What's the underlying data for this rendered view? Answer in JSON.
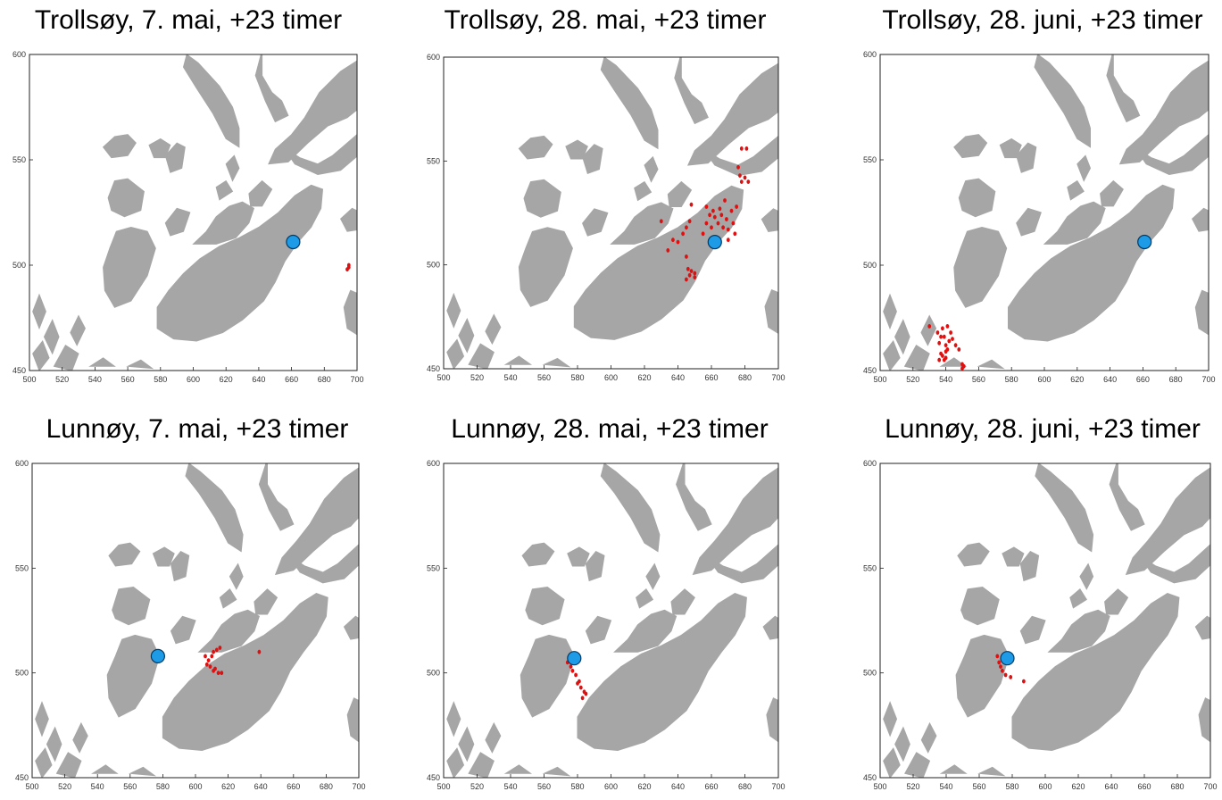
{
  "figure": {
    "axes": {
      "xlim": [
        500,
        700
      ],
      "ylim": [
        450,
        600
      ],
      "xticks": [
        500,
        520,
        540,
        560,
        580,
        600,
        620,
        640,
        660,
        680,
        700
      ],
      "yticks": [
        450,
        500,
        550,
        600
      ],
      "xtick_labels": [
        "500",
        "520",
        "540",
        "560",
        "580",
        "600",
        "620",
        "640",
        "660",
        "680",
        "700"
      ],
      "ytick_labels": [
        "450",
        "500",
        "550",
        "600"
      ]
    },
    "colors": {
      "land": "#a6a6a6",
      "sea": "#ffffff",
      "particle": "#e01010",
      "release": "#1e9be6",
      "release_edge": "#003a66",
      "axis": "#222222"
    }
  },
  "panels": [
    {
      "title": "Trollsøy, 7. mai, +23 timer",
      "release": [
        661,
        511
      ],
      "particles": [
        [
          695,
          500
        ],
        [
          694,
          498
        ],
        [
          695,
          499
        ]
      ]
    },
    {
      "title": "Trollsøy, 28. mai, +23 timer",
      "release": [
        662,
        511
      ],
      "particles": [
        [
          630,
          521
        ],
        [
          634,
          507
        ],
        [
          637,
          512
        ],
        [
          640,
          511
        ],
        [
          643,
          515
        ],
        [
          645,
          518
        ],
        [
          647,
          521
        ],
        [
          648,
          529
        ],
        [
          645,
          504
        ],
        [
          646,
          498
        ],
        [
          648,
          497
        ],
        [
          650,
          496
        ],
        [
          645,
          493
        ],
        [
          647,
          495
        ],
        [
          650,
          494
        ],
        [
          655,
          515
        ],
        [
          657,
          520
        ],
        [
          657,
          528
        ],
        [
          659,
          524
        ],
        [
          660,
          518
        ],
        [
          661,
          526
        ],
        [
          662,
          523
        ],
        [
          662,
          513
        ],
        [
          664,
          520
        ],
        [
          665,
          527
        ],
        [
          666,
          524
        ],
        [
          667,
          518
        ],
        [
          668,
          531
        ],
        [
          669,
          522
        ],
        [
          670,
          517
        ],
        [
          672,
          526
        ],
        [
          673,
          520
        ],
        [
          674,
          515
        ],
        [
          675,
          528
        ],
        [
          676,
          547
        ],
        [
          677,
          543
        ],
        [
          678,
          540
        ],
        [
          680,
          542
        ],
        [
          682,
          540
        ],
        [
          678,
          556
        ],
        [
          681,
          556
        ],
        [
          670,
          512
        ],
        [
          664,
          509
        ]
      ]
    },
    {
      "title": "Trollsøy, 28. juni, +23 timer",
      "release": [
        661,
        511
      ],
      "particles": [
        [
          530,
          471
        ],
        [
          535,
          468
        ],
        [
          536,
          463
        ],
        [
          537,
          466
        ],
        [
          538,
          470
        ],
        [
          539,
          466
        ],
        [
          540,
          462
        ],
        [
          541,
          471
        ],
        [
          542,
          464
        ],
        [
          543,
          468
        ],
        [
          537,
          458
        ],
        [
          536,
          455
        ],
        [
          538,
          457
        ],
        [
          540,
          459
        ],
        [
          539,
          455
        ],
        [
          541,
          460
        ],
        [
          544,
          465
        ],
        [
          546,
          462
        ],
        [
          548,
          460
        ],
        [
          550,
          453
        ],
        [
          551,
          452
        ],
        [
          550,
          451
        ],
        [
          540,
          456
        ]
      ]
    },
    {
      "title": "Lunnøy, 7. mai, +23 timer",
      "release": [
        577,
        508
      ],
      "particles": [
        [
          606,
          508
        ],
        [
          608,
          506
        ],
        [
          607,
          504
        ],
        [
          609,
          503
        ],
        [
          611,
          501
        ],
        [
          612,
          502
        ],
        [
          614,
          500
        ],
        [
          616,
          500
        ],
        [
          611,
          510
        ],
        [
          613,
          511
        ],
        [
          615,
          512
        ],
        [
          610,
          508
        ],
        [
          639,
          510
        ]
      ]
    },
    {
      "title": "Lunnøy, 28. mai, +23 timer",
      "release": [
        578,
        507
      ],
      "particles": [
        [
          574,
          505
        ],
        [
          576,
          503
        ],
        [
          577,
          501
        ],
        [
          579,
          499
        ],
        [
          581,
          496
        ],
        [
          582,
          493
        ],
        [
          584,
          491
        ],
        [
          583,
          488
        ],
        [
          585,
          490
        ],
        [
          580,
          495
        ]
      ]
    },
    {
      "title": "Lunnøy, 28. juni, +23 timer",
      "release": [
        577,
        507
      ],
      "particles": [
        [
          571,
          508
        ],
        [
          572,
          505
        ],
        [
          573,
          503
        ],
        [
          574,
          501
        ],
        [
          576,
          499
        ],
        [
          579,
          498
        ],
        [
          587,
          496
        ]
      ]
    }
  ]
}
